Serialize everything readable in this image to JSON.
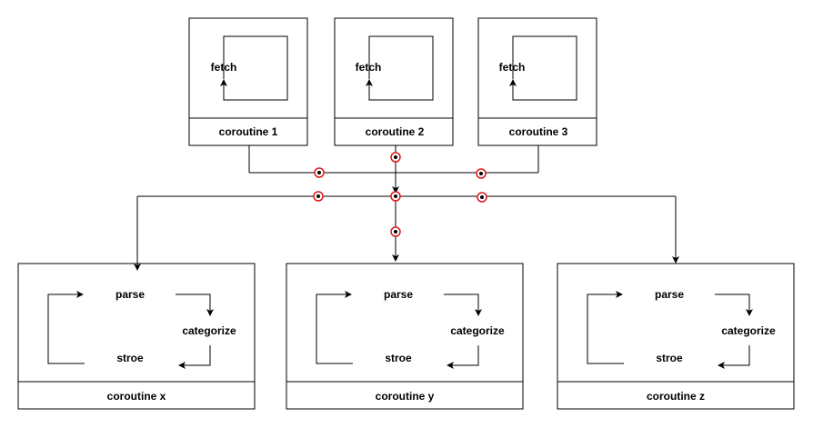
{
  "fetchers": [
    {
      "loop_label": "fetch",
      "title": "coroutine 1"
    },
    {
      "loop_label": "fetch",
      "title": "coroutine 2"
    },
    {
      "loop_label": "fetch",
      "title": "coroutine 3"
    }
  ],
  "workers": [
    {
      "parse_label": "parse",
      "categorize_label": "categorize",
      "store_label": "stroe",
      "title": "coroutine x"
    },
    {
      "parse_label": "parse",
      "categorize_label": "categorize",
      "store_label": "stroe",
      "title": "coroutine y"
    },
    {
      "parse_label": "parse",
      "categorize_label": "categorize",
      "store_label": "stroe",
      "title": "coroutine z"
    }
  ],
  "colors": {
    "line": "#000000",
    "junction": "#e0161a",
    "background": "#ffffff"
  }
}
